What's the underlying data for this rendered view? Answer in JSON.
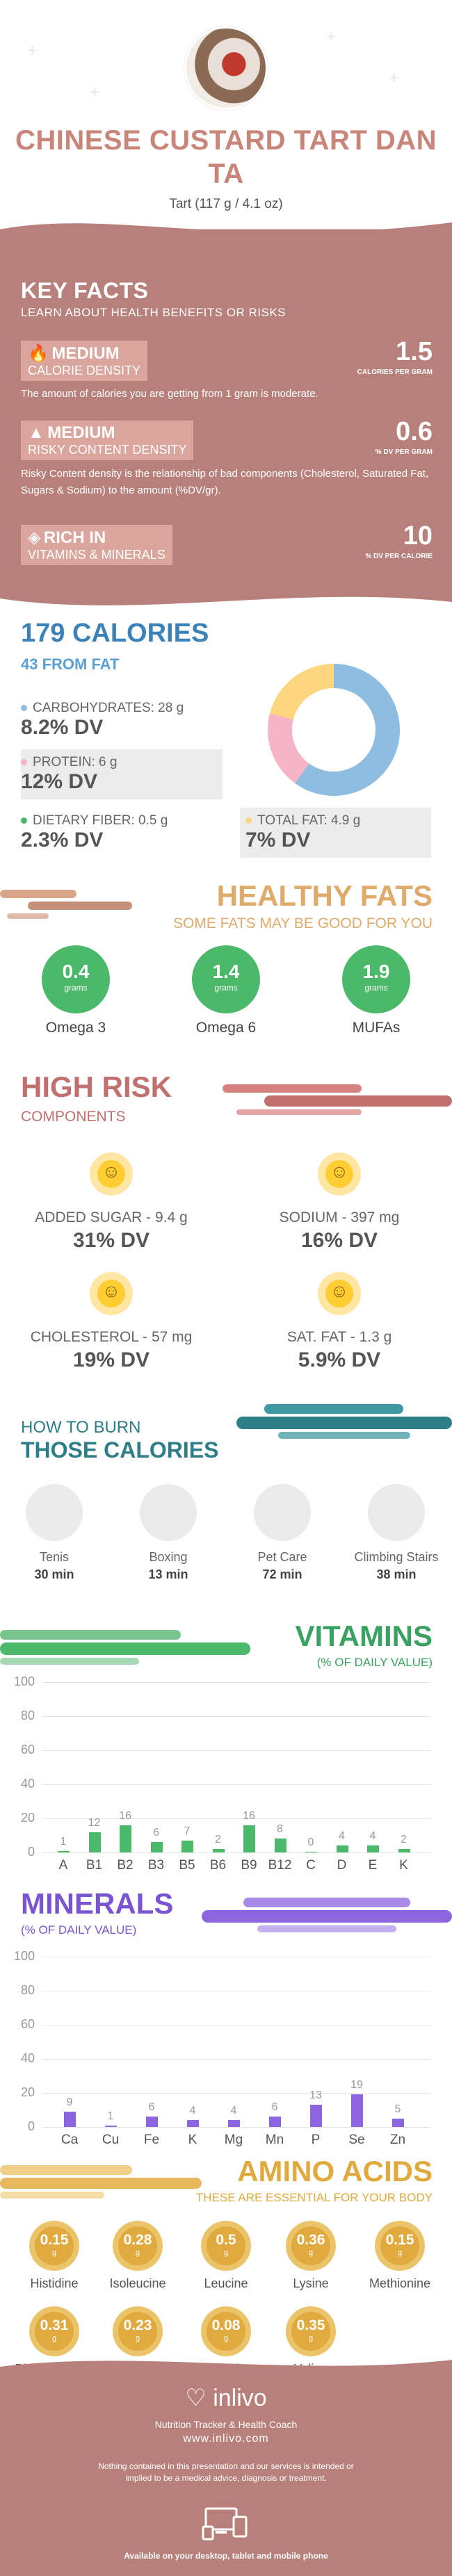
{
  "header": {
    "title": "CHINESE CUSTARD TART DAN TA",
    "serving": "Tart (117 g / 4.1 oz)"
  },
  "key_facts": {
    "title": "KEY FACTS",
    "subtitle": "LEARN ABOUT HEALTH BENEFITS OR RISKS",
    "calorie_density": {
      "level": "MEDIUM",
      "label": "CALORIE DENSITY",
      "value": "1.5",
      "unit": "CALORIES PER GRAM",
      "desc": "The amount of calories you are getting from 1 gram is moderate."
    },
    "risky_content": {
      "level": "MEDIUM",
      "label": "RISKY CONTENT DENSITY",
      "value": "0.6",
      "unit": "% DV PER GRAM",
      "desc": "Risky Content density is the relationship of bad components (Cholesterol, Saturated Fat, Sugars & Sodium) to the amount (%DV/gr)."
    },
    "vitamins_minerals": {
      "level": "RICH IN",
      "label": "VITAMINS & MINERALS",
      "value": "10",
      "unit": "% DV PER CALORIE"
    }
  },
  "calories": {
    "total": "179 CALORIES",
    "from_fat": "43 FROM FAT",
    "carbs_label": "CARBOHYDRATES: 28 g",
    "carbs_dv": "8.2% DV",
    "protein_label": "PROTEIN: 6 g",
    "protein_dv": "12% DV",
    "fiber_label": "DIETARY FIBER: 0.5 g",
    "fiber_dv": "2.3% DV",
    "fat_label": "TOTAL FAT: 4.9 g",
    "fat_dv": "7% DV",
    "colors": {
      "carbs": "#8fbde1",
      "protein": "#f6b4c7",
      "fat": "#ffd680"
    }
  },
  "healthy_fats": {
    "title": "HEALTHY FATS",
    "subtitle": "SOME FATS MAY BE GOOD FOR YOU",
    "items": [
      {
        "value": "0.4",
        "unit": "grams",
        "label": "Omega 3"
      },
      {
        "value": "1.4",
        "unit": "grams",
        "label": "Omega 6"
      },
      {
        "value": "1.9",
        "unit": "grams",
        "label": "MUFAs"
      }
    ]
  },
  "high_risk": {
    "title": "HIGH RISK",
    "subtitle": "COMPONENTS",
    "items": [
      {
        "label": "ADDED SUGAR - 9.4 g",
        "dv": "31% DV"
      },
      {
        "label": "SODIUM - 397 mg",
        "dv": "16% DV"
      },
      {
        "label": "CHOLESTEROL - 57 mg",
        "dv": "19% DV"
      },
      {
        "label": "SAT. FAT - 1.3 g",
        "dv": "5.9% DV"
      }
    ]
  },
  "burn": {
    "title_small": "HOW TO BURN",
    "title_big": "THOSE CALORIES",
    "items": [
      {
        "label": "Tenis",
        "time": "30 min"
      },
      {
        "label": "Boxing",
        "time": "13 min"
      },
      {
        "label": "Pet Care",
        "time": "72 min"
      },
      {
        "label": "Climbing Stairs",
        "time": "38 min"
      }
    ]
  },
  "vitamins": {
    "title": "VITAMINS",
    "subtitle": "(% OF DAILY VALUE)",
    "ticks": [
      "100",
      "80",
      "60",
      "40",
      "20",
      "0"
    ],
    "color": "#4cb86a"
  },
  "minerals": {
    "title": "MINERALS",
    "subtitle": "(% OF DAILY VALUE)",
    "ticks": [
      "100",
      "80",
      "60",
      "40",
      "20",
      "0"
    ],
    "color": "#8c66e0"
  },
  "chart_data": [
    {
      "type": "bar",
      "title": "VITAMINS",
      "ylabel": "% OF DAILY VALUE",
      "categories": [
        "A",
        "B1",
        "B2",
        "B3",
        "B5",
        "B6",
        "B9",
        "B12",
        "C",
        "D",
        "E",
        "K"
      ],
      "values": [
        1,
        12,
        16,
        6,
        7,
        2,
        16,
        8,
        0,
        4,
        4,
        2
      ],
      "ylim": [
        0,
        100
      ]
    },
    {
      "type": "bar",
      "title": "MINERALS",
      "ylabel": "% OF DAILY VALUE",
      "categories": [
        "Ca",
        "Cu",
        "Fe",
        "K",
        "Mg",
        "Mn",
        "P",
        "Se",
        "Zn"
      ],
      "values": [
        9,
        1,
        6,
        4,
        4,
        6,
        13,
        19,
        5
      ],
      "ylim": [
        0,
        100
      ]
    }
  ],
  "amino": {
    "title": "AMINO ACIDS",
    "subtitle": "THESE ARE ESSENTIAL FOR YOUR BODY",
    "items": [
      {
        "value": "0.15",
        "unit": "g",
        "label": "Histidine"
      },
      {
        "value": "0.28",
        "unit": "g",
        "label": "Isoleucine"
      },
      {
        "value": "0.5",
        "unit": "g",
        "label": "Leucine"
      },
      {
        "value": "0.36",
        "unit": "g",
        "label": "Lysine"
      },
      {
        "value": "0.15",
        "unit": "g",
        "label": "Methionine"
      },
      {
        "value": "0.31",
        "unit": "g",
        "label": "Phenylalanine"
      },
      {
        "value": "0.23",
        "unit": "g",
        "label": "Threonine"
      },
      {
        "value": "0.08",
        "unit": "g",
        "label": "Tryptophan"
      },
      {
        "value": "0.35",
        "unit": "g",
        "label": "Valine"
      }
    ]
  },
  "footer": {
    "brand": "inlivo",
    "tagline": "Nutrition Tracker & Health Coach",
    "url": "www.inlivo.com",
    "disclaimer": "Nothing contained in this presentation and our services is intended or implied to be a medical advice, diagnosis or treatment.",
    "available": "Available on your desktop, tablet and mobile phone"
  }
}
